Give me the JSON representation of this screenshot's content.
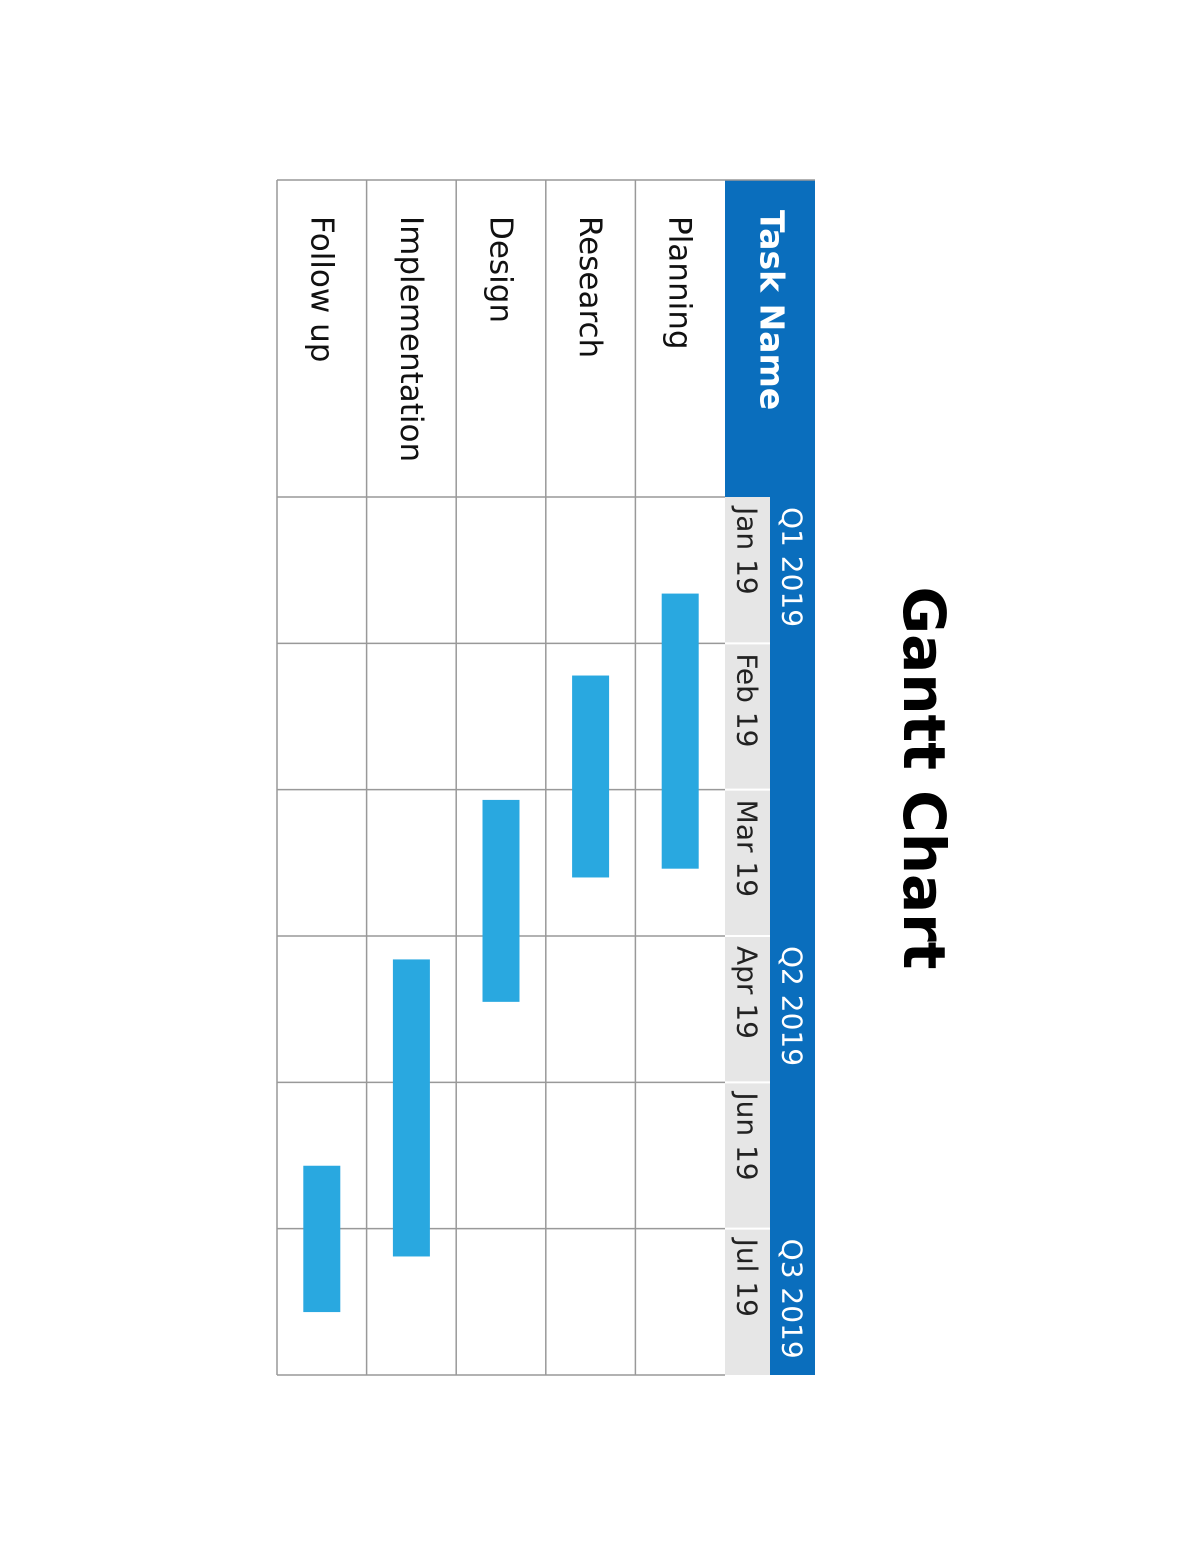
{
  "chart_data": {
    "type": "gantt",
    "title": "Gantt Chart",
    "category_header": "Task Name",
    "categories": [
      "Planning",
      "Research",
      "Design",
      "Implementation",
      "Follow up"
    ],
    "periods": [
      "Jan 19",
      "Feb 19",
      "Mar 19",
      "Apr 19",
      "Jun 19",
      "Jul 19"
    ],
    "period_groups": [
      "Q1 2019",
      null,
      null,
      "Q2 2019",
      null,
      "Q3 2019"
    ],
    "start": [
      0.66,
      1.22,
      2.07,
      3.16,
      4.57
    ],
    "end": [
      2.54,
      2.6,
      3.45,
      5.19,
      5.57
    ],
    "xlim": [
      0,
      6
    ],
    "color": "#29a8e0",
    "header_color": "#0a6ebd",
    "subheader_color": "#e6e6e6"
  }
}
